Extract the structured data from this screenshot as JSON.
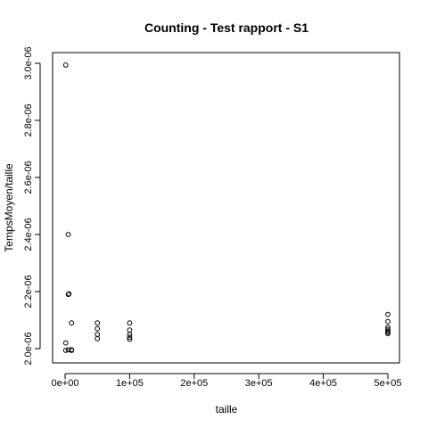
{
  "chart_data": {
    "type": "scatter",
    "title": "Counting - Test rapport - S1",
    "xlabel": "taille",
    "ylabel": "TempsMoyen/taille",
    "xlim": [
      0,
      500000
    ],
    "ylim": [
      2e-06,
      3e-06
    ],
    "x_ticks": [
      0,
      100000,
      200000,
      300000,
      400000,
      500000
    ],
    "x_tick_labels": [
      "0e+00",
      "1e+05",
      "2e+05",
      "3e+05",
      "4e+05",
      "5e+05"
    ],
    "y_ticks": [
      2e-06,
      2.2e-06,
      2.4e-06,
      2.6e-06,
      2.8e-06,
      3e-06
    ],
    "y_tick_labels": [
      "2.0e-06",
      "2.2e-06",
      "2.4e-06",
      "2.6e-06",
      "2.8e-06",
      "3.0e-06"
    ],
    "grid": false,
    "legend": "none",
    "points": [
      {
        "x": 1000,
        "y": 2.994e-06
      },
      {
        "x": 1000,
        "y": 2.02e-06
      },
      {
        "x": 1000,
        "y": 1.994e-06
      },
      {
        "x": 5000,
        "y": 2.4e-06
      },
      {
        "x": 5000,
        "y": 2.19e-06
      },
      {
        "x": 5000,
        "y": 1.996e-06
      },
      {
        "x": 6000,
        "y": 2.192e-06
      },
      {
        "x": 10000,
        "y": 2.09e-06
      },
      {
        "x": 10000,
        "y": 1.996e-06
      },
      {
        "x": 10000,
        "y": 1.994e-06
      },
      {
        "x": 50000,
        "y": 2.09e-06
      },
      {
        "x": 50000,
        "y": 2.07e-06
      },
      {
        "x": 50000,
        "y": 2.05e-06
      },
      {
        "x": 50000,
        "y": 2.035e-06
      },
      {
        "x": 100000,
        "y": 2.09e-06
      },
      {
        "x": 100000,
        "y": 2.065e-06
      },
      {
        "x": 100000,
        "y": 2.05e-06
      },
      {
        "x": 100000,
        "y": 2.04e-06
      },
      {
        "x": 100000,
        "y": 2.033e-06
      },
      {
        "x": 500000,
        "y": 2.12e-06
      },
      {
        "x": 500000,
        "y": 2.095e-06
      },
      {
        "x": 500000,
        "y": 2.075e-06
      },
      {
        "x": 500000,
        "y": 2.068e-06
      },
      {
        "x": 500000,
        "y": 2.062e-06
      },
      {
        "x": 500000,
        "y": 2.057e-06
      },
      {
        "x": 500000,
        "y": 2.053e-06
      }
    ]
  }
}
